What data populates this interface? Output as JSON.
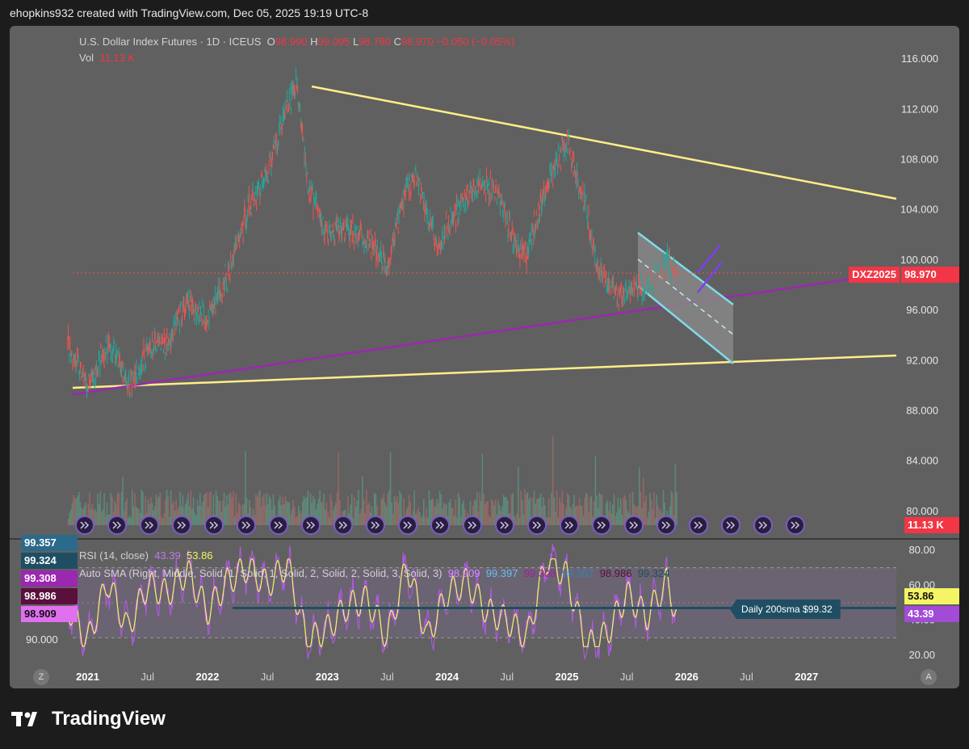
{
  "header": {
    "text": "ehopkins932 created with TradingView.com, Dec 05, 2025 19:19 UTC-8"
  },
  "legend": {
    "title": "U.S. Dollar Index Futures · 1D · ICEUS",
    "o_label": "O",
    "o_value": "98.990",
    "h_label": "H",
    "h_value": "99.095",
    "l_label": "L",
    "l_value": "98.780",
    "c_label": "C",
    "c_value": "98.970",
    "change": "−0.050 (−0.05%)",
    "vol_label": "Vol",
    "vol_value": "11.13 K"
  },
  "rsi_legend": {
    "rsi_label": "RSI (14, close)",
    "rsi_val": "43.39",
    "rsi_ma": "53.86",
    "sma_label": "Auto SMA (Right, Middle, Solid, 1, Solid, 1, Solid, 2, Solid, 2, Solid, 3, Solid, 3)",
    "sma_values": [
      "98.909",
      "99.397",
      "99.308",
      "99.357",
      "98.986",
      "99.324"
    ]
  },
  "price_axis": {
    "ticks": [
      "116.000",
      "112.000",
      "108.000",
      "104.000",
      "100.000",
      "96.000",
      "92.000",
      "88.000",
      "84.000",
      "80.000"
    ],
    "symbol_tag": "DXZ2025",
    "last_price": "98.970",
    "volume_tag": "11.13 K"
  },
  "rsi_axis": {
    "ticks": [
      "80.00",
      "60.00",
      "40.00",
      "20.00"
    ],
    "rsi_ma_tag": "53.86",
    "rsi_tag": "43.39"
  },
  "left_tags": [
    "99.357",
    "99.324",
    "99.308",
    "98.986",
    "98.909",
    "90.000"
  ],
  "annotation": "Daily 200sma $99.32",
  "time_axis": [
    "2021",
    "Jul",
    "2022",
    "Jul",
    "2023",
    "Jul",
    "2024",
    "Jul",
    "2025",
    "Jul",
    "2026",
    "Jul",
    "2027"
  ],
  "corner_buttons": {
    "left": "Z",
    "right": "A"
  },
  "branding": "TradingView",
  "colors": {
    "up": "#26a69a",
    "down": "#ef5350",
    "trendline": "#ffee88",
    "purple_line": "#9c27b0",
    "channel": "#7fdbea",
    "rsi_line": "#b45ae8",
    "rsi_ma": "#f4f465",
    "sma_line": "#1f4e63"
  },
  "chart_data": {
    "type": "candlestick",
    "title": "U.S. Dollar Index Futures · 1D · ICEUS",
    "ylim": [
      78,
      118
    ],
    "xlim": [
      "2020-11",
      "2027-09"
    ],
    "series": [
      {
        "name": "U.S. Dollar Index Futures",
        "points": [
          [
            "2020-11",
            93.5
          ],
          [
            "2021-01",
            89.8
          ],
          [
            "2021-03",
            93.0
          ],
          [
            "2021-04",
            92.5
          ],
          [
            "2021-05",
            89.8
          ],
          [
            "2021-07",
            92.8
          ],
          [
            "2021-09",
            93.5
          ],
          [
            "2021-11",
            96.5
          ],
          [
            "2022-01",
            95.5
          ],
          [
            "2022-03",
            98.6
          ],
          [
            "2022-05",
            104.0
          ],
          [
            "2022-07",
            107.0
          ],
          [
            "2022-09",
            112.5
          ],
          [
            "2022-10",
            114.0
          ],
          [
            "2022-11",
            106.0
          ],
          [
            "2023-01",
            102.0
          ],
          [
            "2023-03",
            102.5
          ],
          [
            "2023-05",
            101.5
          ],
          [
            "2023-07",
            99.6
          ],
          [
            "2023-09",
            106.0
          ],
          [
            "2023-10",
            106.5
          ],
          [
            "2023-12",
            101.0
          ],
          [
            "2024-02",
            104.0
          ],
          [
            "2024-04",
            106.0
          ],
          [
            "2024-06",
            105.5
          ],
          [
            "2024-08",
            101.0
          ],
          [
            "2024-09",
            100.5
          ],
          [
            "2024-11",
            106.0
          ],
          [
            "2025-01",
            109.5
          ],
          [
            "2025-03",
            104.0
          ],
          [
            "2025-04",
            99.5
          ],
          [
            "2025-06",
            97.0
          ],
          [
            "2025-07",
            97.5
          ],
          [
            "2025-09",
            97.8
          ],
          [
            "2025-11",
            100.0
          ],
          [
            "2025-12",
            98.97
          ]
        ]
      }
    ],
    "rsi": {
      "name": "RSI (14, close)",
      "ylim": [
        15,
        85
      ],
      "last": 43.39,
      "ma_last": 53.86,
      "bands": [
        30,
        70
      ],
      "points": [
        [
          "2020-11",
          48
        ],
        [
          "2021-01",
          28
        ],
        [
          "2021-03",
          62
        ],
        [
          "2021-05",
          35
        ],
        [
          "2021-07",
          60
        ],
        [
          "2021-09",
          55
        ],
        [
          "2021-11",
          68
        ],
        [
          "2022-01",
          45
        ],
        [
          "2022-03",
          62
        ],
        [
          "2022-05",
          70
        ],
        [
          "2022-07",
          60
        ],
        [
          "2022-09",
          72
        ],
        [
          "2022-11",
          28
        ],
        [
          "2023-01",
          35
        ],
        [
          "2023-03",
          48
        ],
        [
          "2023-05",
          52
        ],
        [
          "2023-07",
          30
        ],
        [
          "2023-09",
          72
        ],
        [
          "2023-11",
          30
        ],
        [
          "2024-01",
          55
        ],
        [
          "2024-03",
          62
        ],
        [
          "2024-05",
          45
        ],
        [
          "2024-07",
          40
        ],
        [
          "2024-09",
          30
        ],
        [
          "2024-11",
          75
        ],
        [
          "2025-01",
          65
        ],
        [
          "2025-03",
          25
        ],
        [
          "2025-05",
          32
        ],
        [
          "2025-07",
          55
        ],
        [
          "2025-09",
          42
        ],
        [
          "2025-11",
          62
        ],
        [
          "2025-12",
          43.39
        ]
      ]
    }
  }
}
